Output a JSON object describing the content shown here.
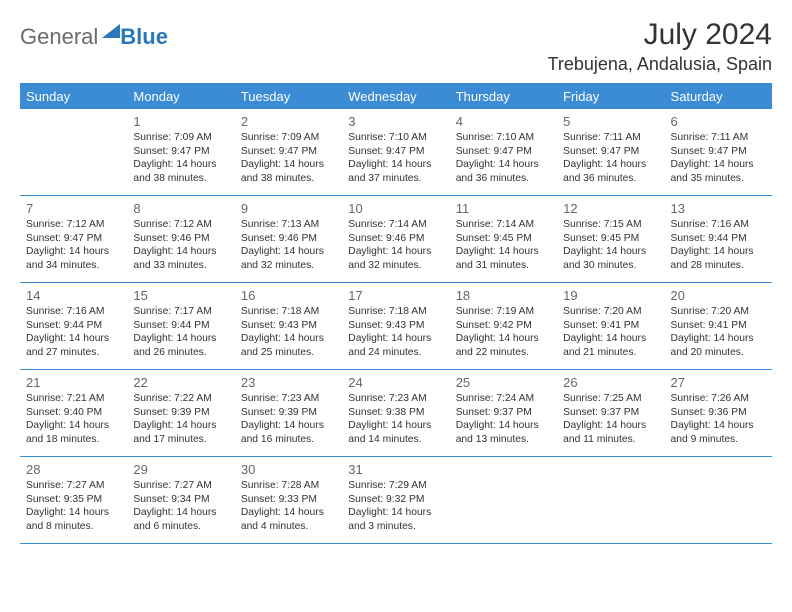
{
  "logo": {
    "part1": "General",
    "part2": "Blue"
  },
  "header": {
    "month": "July 2024",
    "location": "Trebujena, Andalusia, Spain"
  },
  "dow": [
    "Sunday",
    "Monday",
    "Tuesday",
    "Wednesday",
    "Thursday",
    "Friday",
    "Saturday"
  ],
  "days": {
    "1": {
      "sunrise": "7:09 AM",
      "sunset": "9:47 PM",
      "daylight": "14 hours and 38 minutes."
    },
    "2": {
      "sunrise": "7:09 AM",
      "sunset": "9:47 PM",
      "daylight": "14 hours and 38 minutes."
    },
    "3": {
      "sunrise": "7:10 AM",
      "sunset": "9:47 PM",
      "daylight": "14 hours and 37 minutes."
    },
    "4": {
      "sunrise": "7:10 AM",
      "sunset": "9:47 PM",
      "daylight": "14 hours and 36 minutes."
    },
    "5": {
      "sunrise": "7:11 AM",
      "sunset": "9:47 PM",
      "daylight": "14 hours and 36 minutes."
    },
    "6": {
      "sunrise": "7:11 AM",
      "sunset": "9:47 PM",
      "daylight": "14 hours and 35 minutes."
    },
    "7": {
      "sunrise": "7:12 AM",
      "sunset": "9:47 PM",
      "daylight": "14 hours and 34 minutes."
    },
    "8": {
      "sunrise": "7:12 AM",
      "sunset": "9:46 PM",
      "daylight": "14 hours and 33 minutes."
    },
    "9": {
      "sunrise": "7:13 AM",
      "sunset": "9:46 PM",
      "daylight": "14 hours and 32 minutes."
    },
    "10": {
      "sunrise": "7:14 AM",
      "sunset": "9:46 PM",
      "daylight": "14 hours and 32 minutes."
    },
    "11": {
      "sunrise": "7:14 AM",
      "sunset": "9:45 PM",
      "daylight": "14 hours and 31 minutes."
    },
    "12": {
      "sunrise": "7:15 AM",
      "sunset": "9:45 PM",
      "daylight": "14 hours and 30 minutes."
    },
    "13": {
      "sunrise": "7:16 AM",
      "sunset": "9:44 PM",
      "daylight": "14 hours and 28 minutes."
    },
    "14": {
      "sunrise": "7:16 AM",
      "sunset": "9:44 PM",
      "daylight": "14 hours and 27 minutes."
    },
    "15": {
      "sunrise": "7:17 AM",
      "sunset": "9:44 PM",
      "daylight": "14 hours and 26 minutes."
    },
    "16": {
      "sunrise": "7:18 AM",
      "sunset": "9:43 PM",
      "daylight": "14 hours and 25 minutes."
    },
    "17": {
      "sunrise": "7:18 AM",
      "sunset": "9:43 PM",
      "daylight": "14 hours and 24 minutes."
    },
    "18": {
      "sunrise": "7:19 AM",
      "sunset": "9:42 PM",
      "daylight": "14 hours and 22 minutes."
    },
    "19": {
      "sunrise": "7:20 AM",
      "sunset": "9:41 PM",
      "daylight": "14 hours and 21 minutes."
    },
    "20": {
      "sunrise": "7:20 AM",
      "sunset": "9:41 PM",
      "daylight": "14 hours and 20 minutes."
    },
    "21": {
      "sunrise": "7:21 AM",
      "sunset": "9:40 PM",
      "daylight": "14 hours and 18 minutes."
    },
    "22": {
      "sunrise": "7:22 AM",
      "sunset": "9:39 PM",
      "daylight": "14 hours and 17 minutes."
    },
    "23": {
      "sunrise": "7:23 AM",
      "sunset": "9:39 PM",
      "daylight": "14 hours and 16 minutes."
    },
    "24": {
      "sunrise": "7:23 AM",
      "sunset": "9:38 PM",
      "daylight": "14 hours and 14 minutes."
    },
    "25": {
      "sunrise": "7:24 AM",
      "sunset": "9:37 PM",
      "daylight": "14 hours and 13 minutes."
    },
    "26": {
      "sunrise": "7:25 AM",
      "sunset": "9:37 PM",
      "daylight": "14 hours and 11 minutes."
    },
    "27": {
      "sunrise": "7:26 AM",
      "sunset": "9:36 PM",
      "daylight": "14 hours and 9 minutes."
    },
    "28": {
      "sunrise": "7:27 AM",
      "sunset": "9:35 PM",
      "daylight": "14 hours and 8 minutes."
    },
    "29": {
      "sunrise": "7:27 AM",
      "sunset": "9:34 PM",
      "daylight": "14 hours and 6 minutes."
    },
    "30": {
      "sunrise": "7:28 AM",
      "sunset": "9:33 PM",
      "daylight": "14 hours and 4 minutes."
    },
    "31": {
      "sunrise": "7:29 AM",
      "sunset": "9:32 PM",
      "daylight": "14 hours and 3 minutes."
    }
  },
  "labels": {
    "sunrise": "Sunrise: ",
    "sunset": "Sunset: ",
    "daylight": "Daylight: "
  },
  "style": {
    "accent": "#3b8cd4",
    "text_color": "#333333",
    "muted_color": "#666666",
    "bg": "#ffffff",
    "week_grid": [
      [
        null,
        1,
        2,
        3,
        4,
        5,
        6
      ],
      [
        7,
        8,
        9,
        10,
        11,
        12,
        13
      ],
      [
        14,
        15,
        16,
        17,
        18,
        19,
        20
      ],
      [
        21,
        22,
        23,
        24,
        25,
        26,
        27
      ],
      [
        28,
        29,
        30,
        31,
        null,
        null,
        null
      ]
    ]
  }
}
